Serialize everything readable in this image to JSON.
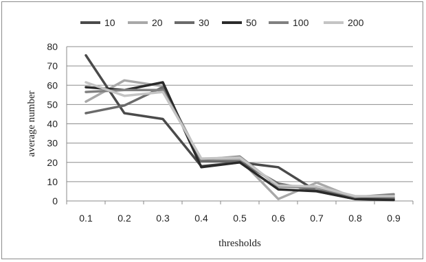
{
  "chart_data": {
    "type": "line",
    "title": "",
    "xlabel": "thresholds",
    "ylabel": "average number",
    "categories": [
      "0.1",
      "0.2",
      "0.3",
      "0.4",
      "0.5",
      "0.6",
      "0.7",
      "0.8",
      "0.9"
    ],
    "ylim": [
      0,
      80
    ],
    "yticks": [
      "0",
      "10",
      "20",
      "30",
      "40",
      "50",
      "60",
      "70",
      "80"
    ],
    "grid": true,
    "legend_position": "top",
    "series": [
      {
        "name": "10",
        "color": "#4a4a4a",
        "values": [
          75.5,
          45.5,
          42.5,
          18.0,
          20.0,
          17.5,
          5.0,
          1.0,
          1.0
        ]
      },
      {
        "name": "20",
        "color": "#a8a8a8",
        "values": [
          51.5,
          62.5,
          59.5,
          21.0,
          21.5,
          1.0,
          9.5,
          1.5,
          2.5
        ]
      },
      {
        "name": "30",
        "color": "#6a6a6a",
        "values": [
          45.5,
          49.5,
          59.0,
          20.5,
          20.5,
          9.0,
          5.5,
          2.0,
          1.5
        ]
      },
      {
        "name": "50",
        "color": "#2a2a2a",
        "values": [
          59.0,
          57.5,
          61.5,
          17.5,
          20.0,
          6.0,
          5.0,
          1.0,
          0.5
        ]
      },
      {
        "name": "100",
        "color": "#808080",
        "values": [
          56.5,
          57.5,
          57.5,
          21.5,
          23.0,
          7.5,
          7.0,
          2.0,
          3.5
        ]
      },
      {
        "name": "200",
        "color": "#c4c4c4",
        "values": [
          61.5,
          54.5,
          56.5,
          22.0,
          22.5,
          8.0,
          7.5,
          2.5,
          2.5
        ]
      }
    ]
  }
}
